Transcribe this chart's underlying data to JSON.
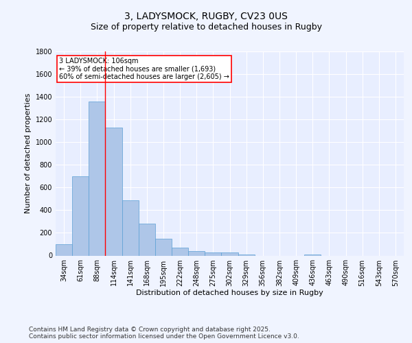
{
  "title": "3, LADYSMOCK, RUGBY, CV23 0US",
  "subtitle": "Size of property relative to detached houses in Rugby",
  "xlabel": "Distribution of detached houses by size in Rugby",
  "ylabel": "Number of detached properties",
  "categories": [
    "34sqm",
    "61sqm",
    "88sqm",
    "114sqm",
    "141sqm",
    "168sqm",
    "195sqm",
    "222sqm",
    "248sqm",
    "275sqm",
    "302sqm",
    "329sqm",
    "356sqm",
    "382sqm",
    "409sqm",
    "436sqm",
    "463sqm",
    "490sqm",
    "516sqm",
    "543sqm",
    "570sqm"
  ],
  "values": [
    100,
    700,
    1360,
    1130,
    490,
    280,
    148,
    70,
    42,
    30,
    28,
    10,
    0,
    0,
    0,
    12,
    0,
    0,
    0,
    0,
    0
  ],
  "bar_color": "#aec6e8",
  "bar_edge_color": "#5a9fd4",
  "vline_x": 2.5,
  "vline_color": "red",
  "annotation_text": "3 LADYSMOCK: 106sqm\n← 39% of detached houses are smaller (1,693)\n60% of semi-detached houses are larger (2,605) →",
  "annotation_box_color": "white",
  "annotation_box_edge": "red",
  "ylim": [
    0,
    1800
  ],
  "yticks": [
    0,
    200,
    400,
    600,
    800,
    1000,
    1200,
    1400,
    1600,
    1800
  ],
  "bg_color": "#f0f4ff",
  "plot_bg_color": "#e8eeff",
  "grid_color": "white",
  "footer": "Contains HM Land Registry data © Crown copyright and database right 2025.\nContains public sector information licensed under the Open Government Licence v3.0.",
  "title_fontsize": 10,
  "subtitle_fontsize": 9,
  "axis_label_fontsize": 8,
  "tick_fontsize": 7,
  "footer_fontsize": 6.5,
  "annot_fontsize": 7
}
